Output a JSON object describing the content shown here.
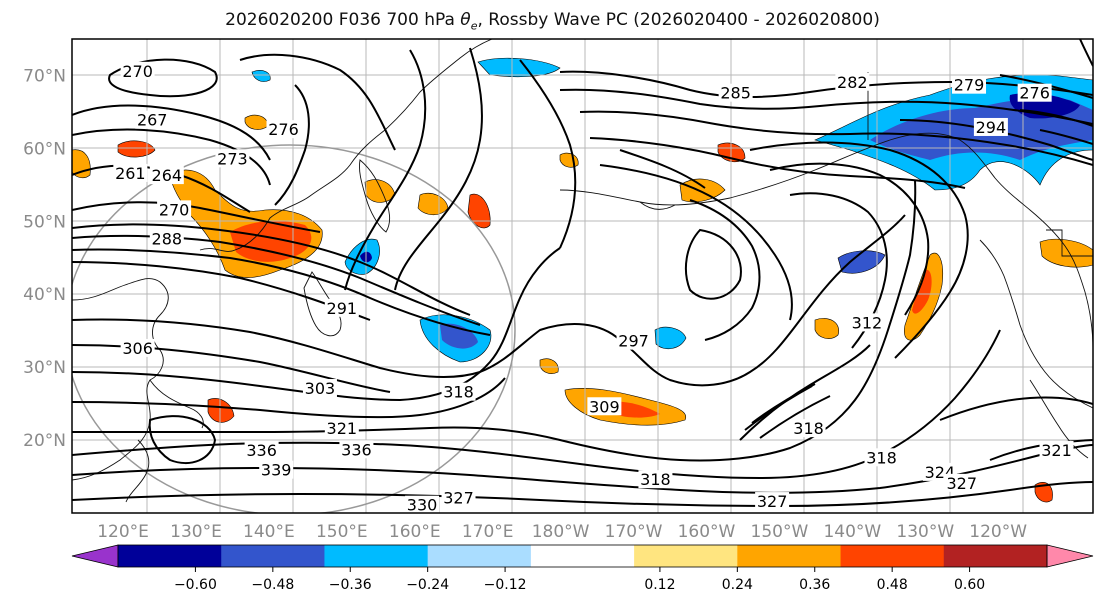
{
  "figure": {
    "title_prefix": "2026020200 F036 700 hPa ",
    "title_symbol": "θ",
    "title_symbol_sub": "e",
    "title_suffix": ", Rossby Wave PC (2026020400 - 2026020800)"
  },
  "map": {
    "lat_labels": [
      "70°N",
      "60°N",
      "50°N",
      "40°N",
      "30°N",
      "20°N"
    ],
    "lat_values": [
      70,
      60,
      50,
      40,
      30,
      20
    ],
    "lon_labels": [
      "120°E",
      "130°E",
      "140°E",
      "150°E",
      "160°E",
      "170°E",
      "180°W",
      "170°W",
      "160°W",
      "150°W",
      "140°W",
      "130°W",
      "120°W"
    ],
    "lon_values": [
      120,
      130,
      140,
      150,
      160,
      170,
      180,
      190,
      200,
      210,
      220,
      230,
      240
    ],
    "lat_range": [
      10,
      75
    ],
    "lon_range": [
      113,
      253
    ],
    "tick_label_color": "#8a8a8a",
    "contour_labels": [
      {
        "text": "270",
        "lon": 122,
        "lat": 70.5
      },
      {
        "text": "267",
        "lon": 124,
        "lat": 63.8
      },
      {
        "text": "261",
        "lon": 121,
        "lat": 56.5
      },
      {
        "text": "264",
        "lon": 126,
        "lat": 56.2
      },
      {
        "text": "270",
        "lon": 127,
        "lat": 51.5
      },
      {
        "text": "288",
        "lon": 126,
        "lat": 47.5
      },
      {
        "text": "276",
        "lon": 142,
        "lat": 62.5
      },
      {
        "text": "273",
        "lon": 135,
        "lat": 58.5
      },
      {
        "text": "285",
        "lon": 204,
        "lat": 67.5
      },
      {
        "text": "282",
        "lon": 220,
        "lat": 69.0
      },
      {
        "text": "279",
        "lon": 236,
        "lat": 68.6
      },
      {
        "text": "294",
        "lon": 239,
        "lat": 62.8
      },
      {
        "text": "276",
        "lon": 245,
        "lat": 67.5
      },
      {
        "text": "297",
        "lon": 190,
        "lat": 33.5
      },
      {
        "text": "309",
        "lon": 186,
        "lat": 24.5
      },
      {
        "text": "303",
        "lon": 147,
        "lat": 27.0
      },
      {
        "text": "318",
        "lon": 166,
        "lat": 26.5
      },
      {
        "text": "321",
        "lon": 150,
        "lat": 21.5
      },
      {
        "text": "336",
        "lon": 139,
        "lat": 18.5
      },
      {
        "text": "336",
        "lon": 152,
        "lat": 18.6
      },
      {
        "text": "339",
        "lon": 141,
        "lat": 15.8
      },
      {
        "text": "318",
        "lon": 214,
        "lat": 21.5
      },
      {
        "text": "318",
        "lon": 224,
        "lat": 17.5
      },
      {
        "text": "324",
        "lon": 232,
        "lat": 15.5
      },
      {
        "text": "327",
        "lon": 235,
        "lat": 14.0
      },
      {
        "text": "321",
        "lon": 248,
        "lat": 18.5
      },
      {
        "text": "312",
        "lon": 222,
        "lat": 36.0
      },
      {
        "text": "318",
        "lon": 193,
        "lat": 14.5
      },
      {
        "text": "327",
        "lon": 209,
        "lat": 11.5
      },
      {
        "text": "327",
        "lon": 166,
        "lat": 12.0
      },
      {
        "text": "330",
        "lon": 161,
        "lat": 11.0
      },
      {
        "text": "291",
        "lon": 150,
        "lat": 38.0
      },
      {
        "text": "306",
        "lon": 122,
        "lat": 32.5
      }
    ]
  },
  "colorbar": {
    "tick_labels": [
      "−0.60",
      "−0.48",
      "−0.36",
      "−0.24",
      "−0.12",
      "0.12",
      "0.24",
      "0.36",
      "0.48",
      "0.60"
    ],
    "tick_values": [
      -0.6,
      -0.48,
      -0.36,
      -0.24,
      -0.12,
      0.12,
      0.24,
      0.36,
      0.48,
      0.6
    ],
    "colors": [
      "#9933cc",
      "#000099",
      "#3355cc",
      "#00bbff",
      "#aaddff",
      "#ffffff",
      "#ffe580",
      "#ffa500",
      "#ff4400",
      "#b22222",
      "#ff88aa"
    ]
  }
}
